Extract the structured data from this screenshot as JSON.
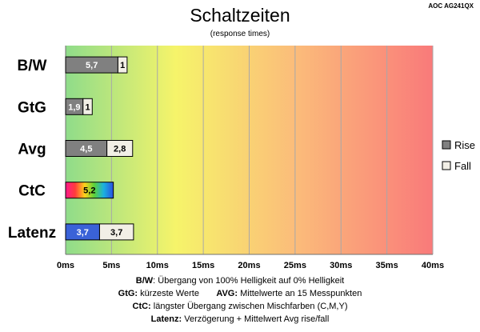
{
  "header": {
    "title": "Schaltzeiten",
    "subtitle": "(response times)",
    "corner_id": "AOC AG241QX"
  },
  "chart_data": {
    "type": "bar",
    "orientation": "horizontal",
    "stacked": true,
    "categories": [
      "B/W",
      "GtG",
      "Avg",
      "CtC",
      "Latenz"
    ],
    "series": [
      {
        "name": "Rise",
        "values": [
          5.7,
          1.9,
          4.5,
          5.2,
          3.7
        ],
        "labels": [
          "5,7",
          "1,9",
          "4,5",
          "5,2",
          "3,7"
        ],
        "color": "#808080"
      },
      {
        "name": "Fall",
        "values": [
          1,
          1,
          2.8,
          0,
          3.7
        ],
        "labels": [
          "1",
          "1",
          "2,8",
          "",
          "3,7"
        ],
        "color": "#f2efe6"
      }
    ],
    "special_fills": {
      "CtC": "rainbow",
      "Latenz": "#3a62d8"
    },
    "xlim": [
      0,
      40
    ],
    "xticks": [
      0,
      5,
      10,
      15,
      20,
      25,
      30,
      35,
      40
    ],
    "xtick_labels": [
      "0ms",
      "5ms",
      "10ms",
      "15ms",
      "20ms",
      "25ms",
      "30ms",
      "35ms",
      "40ms"
    ],
    "background_gradient": [
      "#8fdc8a",
      "#f6f46a",
      "#fbbd7a",
      "#f97a7a"
    ],
    "grid": true,
    "legend_position": "right"
  },
  "footnotes": [
    {
      "term": "B/W",
      "text": ":  Übergang von 100% Helligkeit auf 0% Helligkeit"
    },
    {
      "term": "GtG:",
      "text": " kürzeste  Werte",
      "term2": "AVG:",
      "text2": " Mittelwerte  an 15 Messpunkten"
    },
    {
      "term": "CtC:",
      "text": " längster Übergang  zwischen Mischfarben  (C,M,Y)"
    },
    {
      "term": "Latenz:",
      "text": " Verzögerung  + Mittelwert Avg rise/fall"
    }
  ]
}
